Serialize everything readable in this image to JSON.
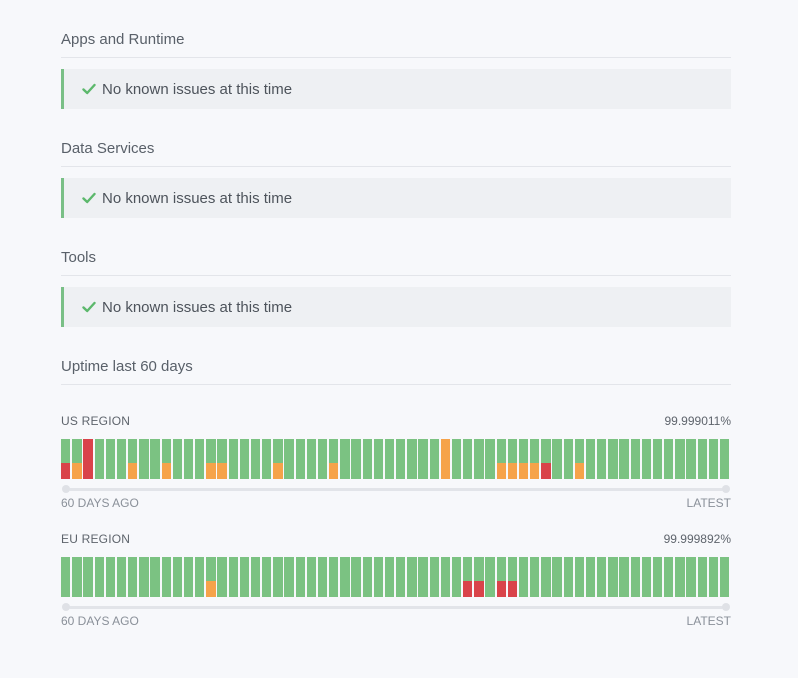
{
  "sections": [
    {
      "title": "Apps and Runtime",
      "status": "No known issues at this time"
    },
    {
      "title": "Data Services",
      "status": "No known issues at this time"
    },
    {
      "title": "Tools",
      "status": "No known issues at this time"
    }
  ],
  "uptime": {
    "title": "Uptime last 60 days",
    "start_label": "60 DAYS AGO",
    "end_label": "LATEST",
    "colors": {
      "ok": "#7bc282",
      "minor": "#f6a34a",
      "major": "#d9434a"
    },
    "regions": [
      {
        "name": "US REGION",
        "percent": "99.999011%",
        "days": [
          "major-partial",
          "minor-partial",
          "major",
          "ok",
          "ok",
          "ok",
          "minor-partial",
          "ok",
          "ok",
          "minor-partial",
          "ok",
          "ok",
          "ok",
          "minor-partial",
          "minor-partial",
          "ok",
          "ok",
          "ok",
          "ok",
          "minor-partial",
          "ok",
          "ok",
          "ok",
          "ok",
          "minor-partial",
          "ok",
          "ok",
          "ok",
          "ok",
          "ok",
          "ok",
          "ok",
          "ok",
          "ok",
          "minor",
          "ok",
          "ok",
          "ok",
          "ok",
          "minor-partial",
          "minor-partial",
          "minor-partial",
          "minor-partial",
          "major-partial",
          "ok",
          "ok",
          "minor-partial",
          "ok",
          "ok",
          "ok",
          "ok",
          "ok",
          "ok",
          "ok",
          "ok",
          "ok",
          "ok",
          "ok",
          "ok",
          "ok"
        ]
      },
      {
        "name": "EU REGION",
        "percent": "99.999892%",
        "days": [
          "ok",
          "ok",
          "ok",
          "ok",
          "ok",
          "ok",
          "ok",
          "ok",
          "ok",
          "ok",
          "ok",
          "ok",
          "ok",
          "minor-partial",
          "ok",
          "ok",
          "ok",
          "ok",
          "ok",
          "ok",
          "ok",
          "ok",
          "ok",
          "ok",
          "ok",
          "ok",
          "ok",
          "ok",
          "ok",
          "ok",
          "ok",
          "ok",
          "ok",
          "ok",
          "ok",
          "ok",
          "major-partial",
          "major-partial",
          "ok",
          "major-partial",
          "major-partial",
          "ok",
          "ok",
          "ok",
          "ok",
          "ok",
          "ok",
          "ok",
          "ok",
          "ok",
          "ok",
          "ok",
          "ok",
          "ok",
          "ok",
          "ok",
          "ok",
          "ok",
          "ok",
          "ok"
        ]
      }
    ]
  }
}
